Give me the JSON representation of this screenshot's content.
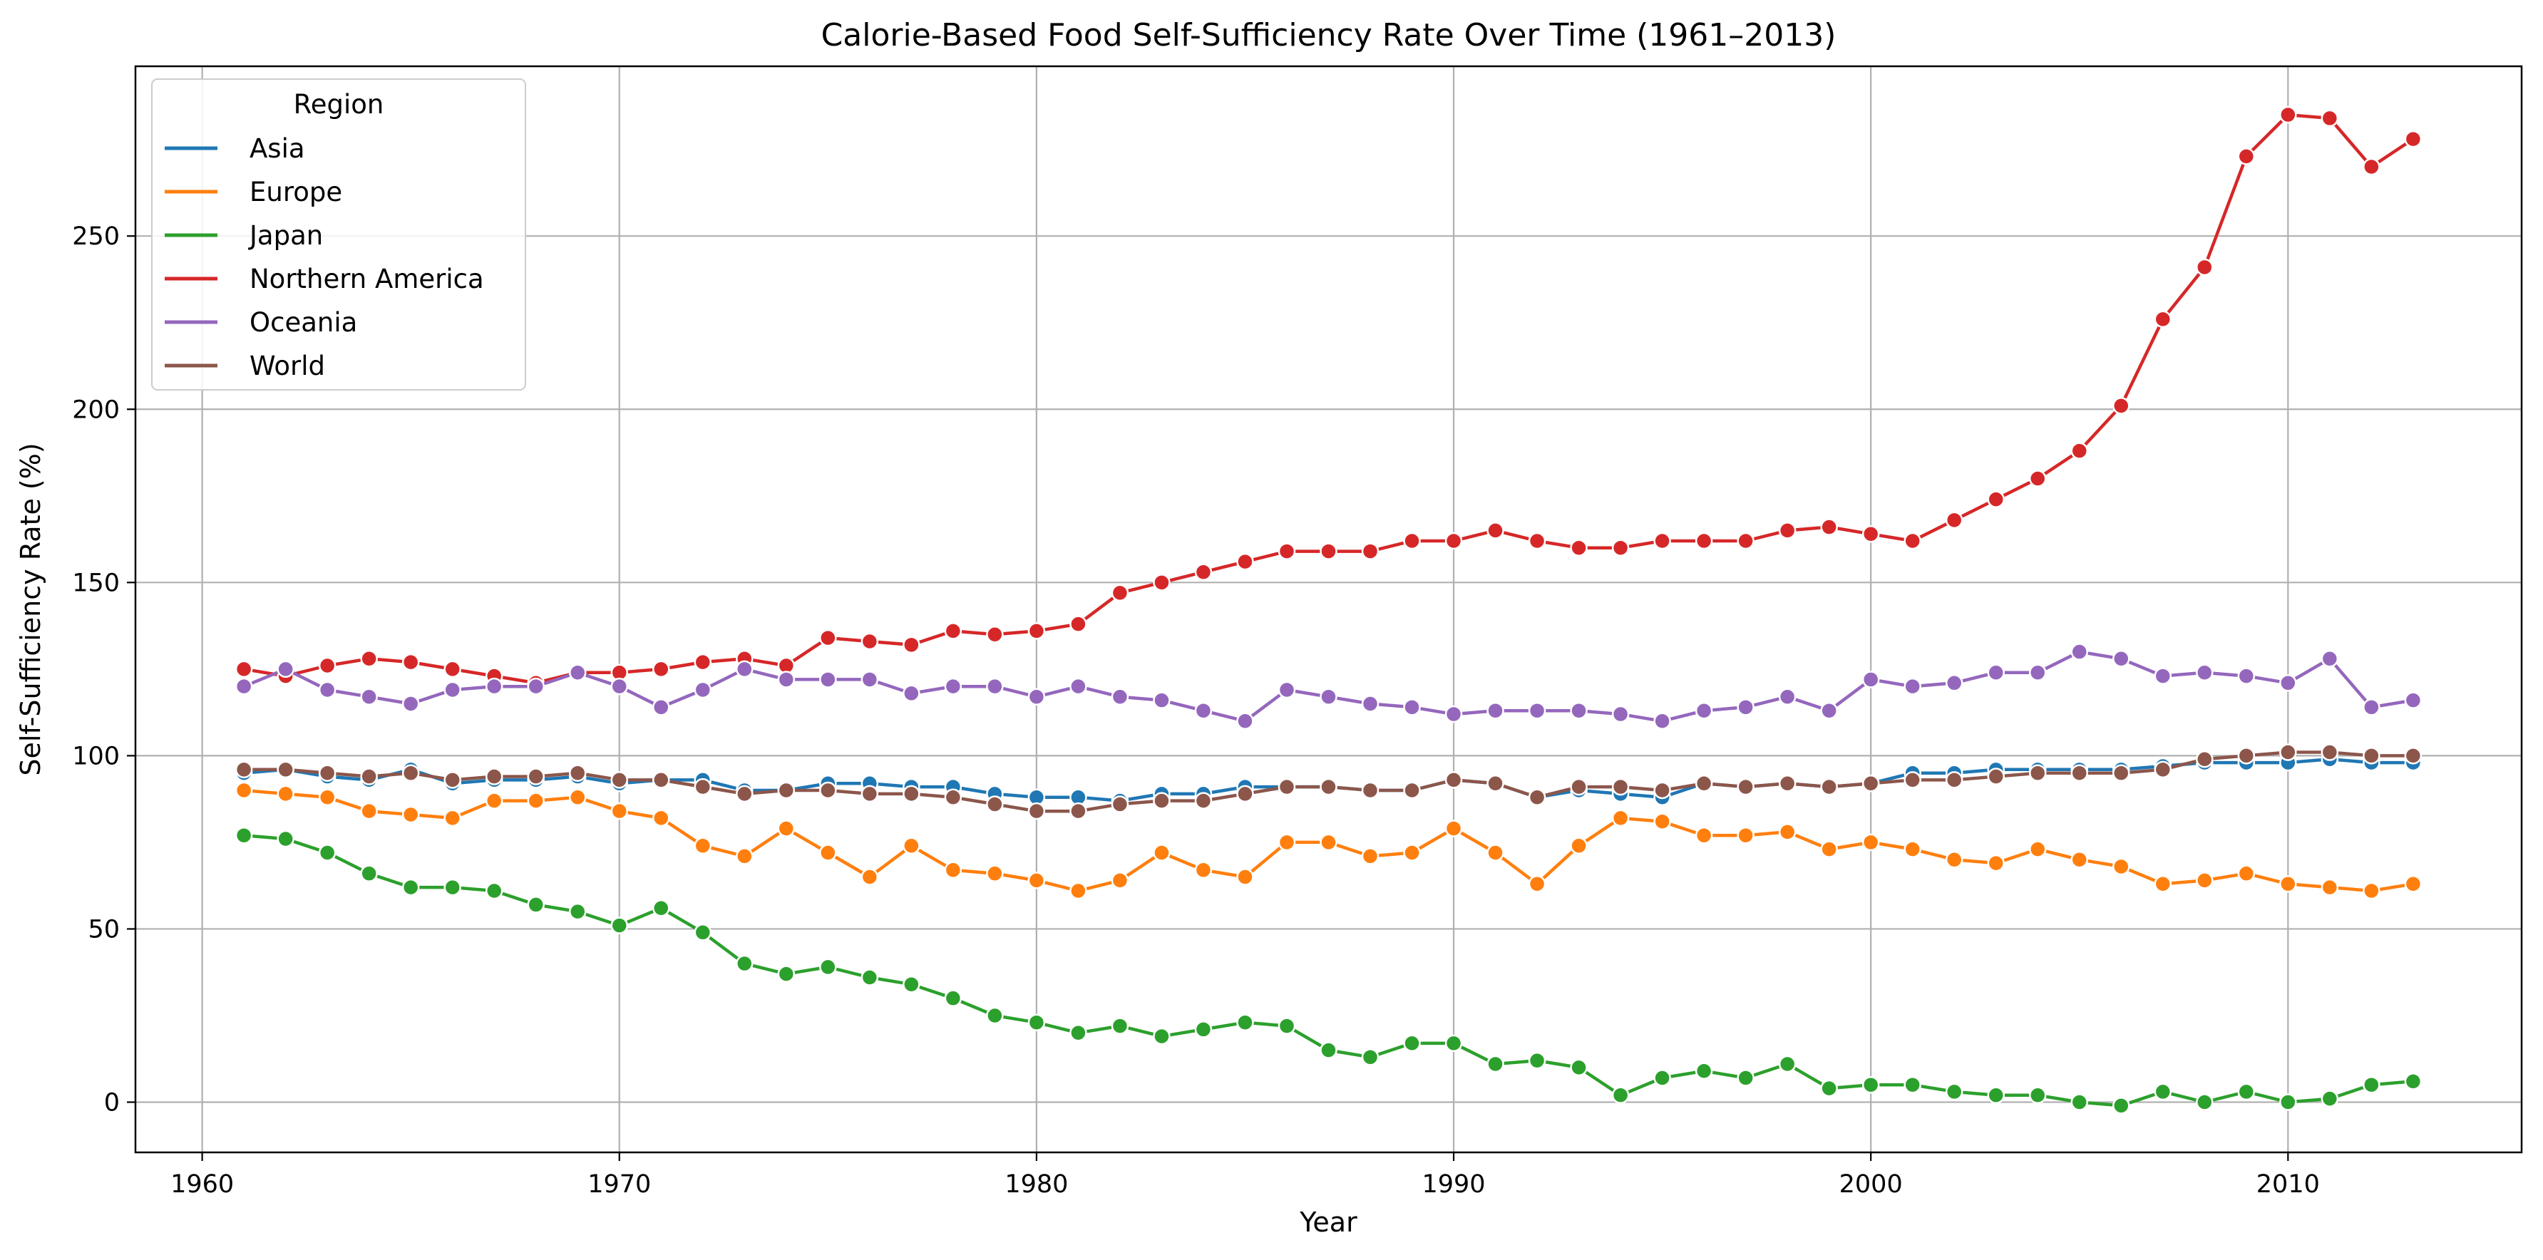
{
  "chart_data": {
    "type": "line",
    "title": "Calorie-Based Food Self-Sufficiency Rate Over Time (1961–2013)",
    "xlabel": "Year",
    "ylabel": "Self-Sufficiency Rate (%)",
    "xlim": [
      1958.4,
      2015.6
    ],
    "ylim": [
      -14.5,
      299
    ],
    "x_ticks": [
      1960,
      1970,
      1980,
      1990,
      2000,
      2010
    ],
    "y_ticks": [
      0,
      50,
      100,
      150,
      200,
      250
    ],
    "grid": true,
    "legend": {
      "title": "Region",
      "position": "top-left"
    },
    "x": [
      1961,
      1962,
      1963,
      1964,
      1965,
      1966,
      1967,
      1968,
      1969,
      1970,
      1971,
      1972,
      1973,
      1974,
      1975,
      1976,
      1977,
      1978,
      1979,
      1980,
      1981,
      1982,
      1983,
      1984,
      1985,
      1986,
      1987,
      1988,
      1989,
      1990,
      1991,
      1992,
      1993,
      1994,
      1995,
      1996,
      1997,
      1998,
      1999,
      2000,
      2001,
      2002,
      2003,
      2004,
      2005,
      2006,
      2007,
      2008,
      2009,
      2010,
      2011,
      2012,
      2013
    ],
    "series": [
      {
        "name": "Asia",
        "color": "#1f77b4",
        "values": [
          95,
          96,
          94,
          93,
          96,
          92,
          93,
          93,
          94,
          92,
          93,
          93,
          90,
          90,
          92,
          92,
          91,
          91,
          89,
          88,
          88,
          87,
          89,
          89,
          91,
          91,
          91,
          90,
          90,
          93,
          92,
          88,
          90,
          89,
          88,
          92,
          91,
          92,
          91,
          92,
          95,
          95,
          96,
          96,
          96,
          96,
          97,
          98,
          98,
          98,
          99,
          98,
          98
        ]
      },
      {
        "name": "Europe",
        "color": "#ff7f0e",
        "values": [
          90,
          89,
          88,
          84,
          83,
          82,
          87,
          87,
          88,
          84,
          82,
          74,
          71,
          79,
          72,
          65,
          74,
          67,
          66,
          64,
          61,
          64,
          72,
          67,
          65,
          75,
          75,
          71,
          72,
          79,
          72,
          63,
          74,
          82,
          81,
          77,
          77,
          78,
          73,
          75,
          73,
          70,
          69,
          73,
          70,
          68,
          63,
          64,
          66,
          63,
          62,
          61,
          63
        ]
      },
      {
        "name": "Japan",
        "color": "#2ca02c",
        "values": [
          77,
          76,
          72,
          66,
          62,
          62,
          61,
          57,
          55,
          51,
          56,
          49,
          40,
          37,
          39,
          36,
          34,
          30,
          25,
          23,
          20,
          22,
          19,
          21,
          23,
          22,
          15,
          13,
          17,
          17,
          11,
          12,
          10,
          2,
          7,
          9,
          7,
          11,
          4,
          5,
          5,
          3,
          2,
          2,
          0,
          -1,
          3,
          0,
          3,
          0,
          1,
          5,
          6
        ]
      },
      {
        "name": "Northern America",
        "color": "#d62728",
        "values": [
          125,
          123,
          126,
          128,
          127,
          125,
          123,
          121,
          124,
          124,
          125,
          127,
          128,
          126,
          134,
          133,
          132,
          136,
          135,
          136,
          138,
          147,
          150,
          153,
          156,
          159,
          159,
          159,
          162,
          162,
          165,
          162,
          160,
          160,
          162,
          162,
          162,
          165,
          166,
          164,
          162,
          168,
          174,
          180,
          188,
          201,
          226,
          241,
          273,
          285,
          284,
          270,
          278
        ]
      },
      {
        "name": "Oceania",
        "color": "#9467bd",
        "values": [
          120,
          125,
          119,
          117,
          115,
          119,
          120,
          120,
          124,
          120,
          114,
          119,
          125,
          122,
          122,
          122,
          118,
          120,
          120,
          117,
          120,
          117,
          116,
          113,
          110,
          119,
          117,
          115,
          114,
          112,
          113,
          113,
          113,
          112,
          110,
          113,
          114,
          117,
          113,
          122,
          120,
          121,
          124,
          124,
          130,
          128,
          123,
          124,
          123,
          121,
          128,
          114,
          116
        ]
      },
      {
        "name": "World",
        "color": "#8c564b",
        "values": [
          96,
          96,
          95,
          94,
          95,
          93,
          94,
          94,
          95,
          93,
          93,
          91,
          89,
          90,
          90,
          89,
          89,
          88,
          86,
          84,
          84,
          86,
          87,
          87,
          89,
          91,
          91,
          90,
          90,
          93,
          92,
          88,
          91,
          91,
          90,
          92,
          91,
          92,
          91,
          92,
          93,
          93,
          94,
          95,
          95,
          95,
          96,
          99,
          100,
          101,
          101,
          100,
          100
        ]
      }
    ]
  }
}
